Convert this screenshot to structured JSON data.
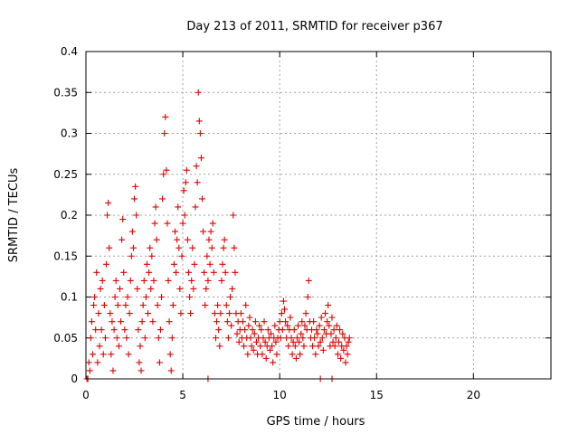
{
  "chart_data": {
    "type": "scatter",
    "title": "Day 213 of 2011, SRMTID for receiver p367",
    "xlabel": "GPS time / hours",
    "ylabel": "SRMTID / TECUs",
    "xlim": [
      0,
      24
    ],
    "ylim": [
      0,
      0.4
    ],
    "grid": true,
    "xticks": [
      0,
      5,
      10,
      15,
      20
    ],
    "xtick_labels": [
      "0",
      "5",
      "10",
      "15",
      "20"
    ],
    "yticks": [
      0,
      0.05,
      0.1,
      0.15,
      0.2,
      0.25,
      0.3,
      0.35,
      0.4
    ],
    "ytick_labels": [
      "0",
      "0.05",
      "0.1",
      "0.15",
      "0.2",
      "0.25",
      "0.3",
      "0.35",
      "0.4"
    ],
    "marker": "+",
    "marker_color": "#e00000",
    "series": [
      {
        "name": "p367",
        "points": [
          [
            0.1,
            0.0
          ],
          [
            0.2,
            0.01
          ],
          [
            0.25,
            0.05
          ],
          [
            0.3,
            0.07
          ],
          [
            0.35,
            0.03
          ],
          [
            0.4,
            0.09
          ],
          [
            0.45,
            0.1
          ],
          [
            0.5,
            0.06
          ],
          [
            0.55,
            0.13
          ],
          [
            0.6,
            0.02
          ],
          [
            0.65,
            0.08
          ],
          [
            0.7,
            0.04
          ],
          [
            0.75,
            0.11
          ],
          [
            0.8,
            0.06
          ],
          [
            0.85,
            0.12
          ],
          [
            0.9,
            0.03
          ],
          [
            0.95,
            0.09
          ],
          [
            1.0,
            0.05
          ],
          [
            1.05,
            0.14
          ],
          [
            1.1,
            0.2
          ],
          [
            1.15,
            0.215
          ],
          [
            1.2,
            0.16
          ],
          [
            1.25,
            0.08
          ],
          [
            1.3,
            0.03
          ],
          [
            1.35,
            0.07
          ],
          [
            1.4,
            0.01
          ],
          [
            1.45,
            0.06
          ],
          [
            1.5,
            0.1
          ],
          [
            1.55,
            0.12
          ],
          [
            1.6,
            0.05
          ],
          [
            1.65,
            0.09
          ],
          [
            1.7,
            0.04
          ],
          [
            1.75,
            0.11
          ],
          [
            1.8,
            0.07
          ],
          [
            1.85,
            0.17
          ],
          [
            1.9,
            0.195
          ],
          [
            1.95,
            0.13
          ],
          [
            2.0,
            0.06
          ],
          [
            2.05,
            0.09
          ],
          [
            2.1,
            0.05
          ],
          [
            2.15,
            0.1
          ],
          [
            2.2,
            0.03
          ],
          [
            2.25,
            0.08
          ],
          [
            2.3,
            0.12
          ],
          [
            2.35,
            0.15
          ],
          [
            2.4,
            0.18
          ],
          [
            2.45,
            0.16
          ],
          [
            2.5,
            0.22
          ],
          [
            2.55,
            0.235
          ],
          [
            2.6,
            0.2
          ],
          [
            2.65,
            0.11
          ],
          [
            2.7,
            0.06
          ],
          [
            2.75,
            0.02
          ],
          [
            2.8,
            0.04
          ],
          [
            2.85,
            0.01
          ],
          [
            2.9,
            0.07
          ],
          [
            2.95,
            0.09
          ],
          [
            3.0,
            0.12
          ],
          [
            3.05,
            0.05
          ],
          [
            3.1,
            0.1
          ],
          [
            3.15,
            0.14
          ],
          [
            3.2,
            0.08
          ],
          [
            3.25,
            0.13
          ],
          [
            3.3,
            0.16
          ],
          [
            3.35,
            0.11
          ],
          [
            3.4,
            0.15
          ],
          [
            3.45,
            0.07
          ],
          [
            3.5,
            0.12
          ],
          [
            3.55,
            0.19
          ],
          [
            3.6,
            0.21
          ],
          [
            3.65,
            0.17
          ],
          [
            3.7,
            0.09
          ],
          [
            3.75,
            0.05
          ],
          [
            3.8,
            0.02
          ],
          [
            3.85,
            0.06
          ],
          [
            3.9,
            0.1
          ],
          [
            3.95,
            0.22
          ],
          [
            4.0,
            0.25
          ],
          [
            4.05,
            0.3
          ],
          [
            4.1,
            0.32
          ],
          [
            4.15,
            0.255
          ],
          [
            4.2,
            0.19
          ],
          [
            4.25,
            0.12
          ],
          [
            4.3,
            0.07
          ],
          [
            4.35,
            0.03
          ],
          [
            4.4,
            0.01
          ],
          [
            4.45,
            0.05
          ],
          [
            4.5,
            0.09
          ],
          [
            4.55,
            0.14
          ],
          [
            4.6,
            0.18
          ],
          [
            4.65,
            0.13
          ],
          [
            4.7,
            0.17
          ],
          [
            4.75,
            0.21
          ],
          [
            4.8,
            0.16
          ],
          [
            4.85,
            0.11
          ],
          [
            4.9,
            0.08
          ],
          [
            4.95,
            0.15
          ],
          [
            5.0,
            0.19
          ],
          [
            5.05,
            0.23
          ],
          [
            5.1,
            0.2
          ],
          [
            5.15,
            0.24
          ],
          [
            5.2,
            0.255
          ],
          [
            5.25,
            0.17
          ],
          [
            5.3,
            0.13
          ],
          [
            5.35,
            0.1
          ],
          [
            5.4,
            0.08
          ],
          [
            5.45,
            0.12
          ],
          [
            5.5,
            0.16
          ],
          [
            5.55,
            0.11
          ],
          [
            5.6,
            0.14
          ],
          [
            5.65,
            0.21
          ],
          [
            5.7,
            0.26
          ],
          [
            5.75,
            0.24
          ],
          [
            5.8,
            0.35
          ],
          [
            5.85,
            0.315
          ],
          [
            5.9,
            0.3
          ],
          [
            5.95,
            0.27
          ],
          [
            6.0,
            0.22
          ],
          [
            6.05,
            0.18
          ],
          [
            6.1,
            0.13
          ],
          [
            6.15,
            0.09
          ],
          [
            6.2,
            0.11
          ],
          [
            6.25,
            0.15
          ],
          [
            6.3,
            0.12
          ],
          [
            6.35,
            0.17
          ],
          [
            6.4,
            0.14
          ],
          [
            6.45,
            0.18
          ],
          [
            6.5,
            0.16
          ],
          [
            6.55,
            0.19
          ],
          [
            6.6,
            0.13
          ],
          [
            6.65,
            0.08
          ],
          [
            6.7,
            0.05
          ],
          [
            6.75,
            0.07
          ],
          [
            6.8,
            0.09
          ],
          [
            6.85,
            0.06
          ],
          [
            6.9,
            0.04
          ],
          [
            6.95,
            0.08
          ],
          [
            7.0,
            0.12
          ],
          [
            7.05,
            0.14
          ],
          [
            7.1,
            0.16
          ],
          [
            7.15,
            0.17
          ],
          [
            7.2,
            0.13
          ],
          [
            7.25,
            0.09
          ],
          [
            7.3,
            0.07
          ],
          [
            7.35,
            0.05
          ],
          [
            7.4,
            0.08
          ],
          [
            7.45,
            0.1
          ],
          [
            7.5,
            0.065
          ],
          [
            7.55,
            0.11
          ],
          [
            7.6,
            0.2
          ],
          [
            7.65,
            0.16
          ],
          [
            7.7,
            0.13
          ],
          [
            7.75,
            0.08
          ],
          [
            7.8,
            0.055
          ],
          [
            7.85,
            0.07
          ],
          [
            7.9,
            0.045
          ],
          [
            7.95,
            0.06
          ],
          [
            8.0,
            0.08
          ],
          [
            8.05,
            0.05
          ],
          [
            8.1,
            0.07
          ],
          [
            8.15,
            0.04
          ],
          [
            8.2,
            0.06
          ],
          [
            8.25,
            0.09
          ],
          [
            8.3,
            0.05
          ],
          [
            8.35,
            0.03
          ],
          [
            8.4,
            0.065
          ],
          [
            8.45,
            0.075
          ],
          [
            8.5,
            0.05
          ],
          [
            8.55,
            0.04
          ],
          [
            8.6,
            0.06
          ],
          [
            8.65,
            0.035
          ],
          [
            8.7,
            0.055
          ],
          [
            8.75,
            0.07
          ],
          [
            8.8,
            0.045
          ],
          [
            8.85,
            0.03
          ],
          [
            8.9,
            0.05
          ],
          [
            8.95,
            0.065
          ],
          [
            9.0,
            0.04
          ],
          [
            9.05,
            0.06
          ],
          [
            9.1,
            0.03
          ],
          [
            9.15,
            0.05
          ],
          [
            9.2,
            0.07
          ],
          [
            9.25,
            0.045
          ],
          [
            9.3,
            0.025
          ],
          [
            9.35,
            0.04
          ],
          [
            9.4,
            0.06
          ],
          [
            9.45,
            0.05
          ],
          [
            9.5,
            0.035
          ],
          [
            9.55,
            0.055
          ],
          [
            9.6,
            0.04
          ],
          [
            9.65,
            0.02
          ],
          [
            9.7,
            0.05
          ],
          [
            9.75,
            0.065
          ],
          [
            9.8,
            0.045
          ],
          [
            9.85,
            0.03
          ],
          [
            9.9,
            0.05
          ],
          [
            9.95,
            0.06
          ],
          [
            10.0,
            0.07
          ],
          [
            10.05,
            0.05
          ],
          [
            10.1,
            0.08
          ],
          [
            10.15,
            0.06
          ],
          [
            10.2,
            0.095
          ],
          [
            10.25,
            0.085
          ],
          [
            10.3,
            0.07
          ],
          [
            10.35,
            0.05
          ],
          [
            10.4,
            0.065
          ],
          [
            10.45,
            0.04
          ],
          [
            10.5,
            0.06
          ],
          [
            10.55,
            0.075
          ],
          [
            10.6,
            0.05
          ],
          [
            10.65,
            0.03
          ],
          [
            10.7,
            0.045
          ],
          [
            10.75,
            0.06
          ],
          [
            10.8,
            0.04
          ],
          [
            10.85,
            0.025
          ],
          [
            10.9,
            0.05
          ],
          [
            10.95,
            0.065
          ],
          [
            11.0,
            0.045
          ],
          [
            11.05,
            0.03
          ],
          [
            11.1,
            0.055
          ],
          [
            11.15,
            0.07
          ],
          [
            11.2,
            0.05
          ],
          [
            11.25,
            0.04
          ],
          [
            11.3,
            0.065
          ],
          [
            11.35,
            0.08
          ],
          [
            11.4,
            0.06
          ],
          [
            11.45,
            0.1
          ],
          [
            11.5,
            0.12
          ],
          [
            11.55,
            0.07
          ],
          [
            11.6,
            0.05
          ],
          [
            11.65,
            0.06
          ],
          [
            11.7,
            0.04
          ],
          [
            11.75,
            0.07
          ],
          [
            11.8,
            0.05
          ],
          [
            11.85,
            0.03
          ],
          [
            11.9,
            0.06
          ],
          [
            11.95,
            0.055
          ],
          [
            12.0,
            0.04
          ],
          [
            12.05,
            0.065
          ],
          [
            12.1,
            0.045
          ],
          [
            12.15,
            0.075
          ],
          [
            12.2,
            0.05
          ],
          [
            12.25,
            0.035
          ],
          [
            12.3,
            0.06
          ],
          [
            12.35,
            0.08
          ],
          [
            12.4,
            0.055
          ],
          [
            12.45,
            0.07
          ],
          [
            12.5,
            0.09
          ],
          [
            12.55,
            0.065
          ],
          [
            12.6,
            0.04
          ],
          [
            12.65,
            0.055
          ],
          [
            12.7,
            0.075
          ],
          [
            12.75,
            0.045
          ],
          [
            12.8,
            0.06
          ],
          [
            12.85,
            0.04
          ],
          [
            12.9,
            0.05
          ],
          [
            12.95,
            0.065
          ],
          [
            13.0,
            0.03
          ],
          [
            13.05,
            0.045
          ],
          [
            13.1,
            0.06
          ],
          [
            13.15,
            0.025
          ],
          [
            13.2,
            0.04
          ],
          [
            13.25,
            0.055
          ],
          [
            13.3,
            0.035
          ],
          [
            13.35,
            0.05
          ],
          [
            13.4,
            0.02
          ],
          [
            13.45,
            0.04
          ],
          [
            13.5,
            0.03
          ],
          [
            13.55,
            0.045
          ],
          [
            13.6,
            0.05
          ],
          [
            6.3,
            0.0
          ],
          [
            12.1,
            0.0
          ],
          [
            12.7,
            0.0
          ],
          [
            0.05,
            0.0
          ],
          [
            0.15,
            0.02
          ]
        ]
      }
    ]
  }
}
